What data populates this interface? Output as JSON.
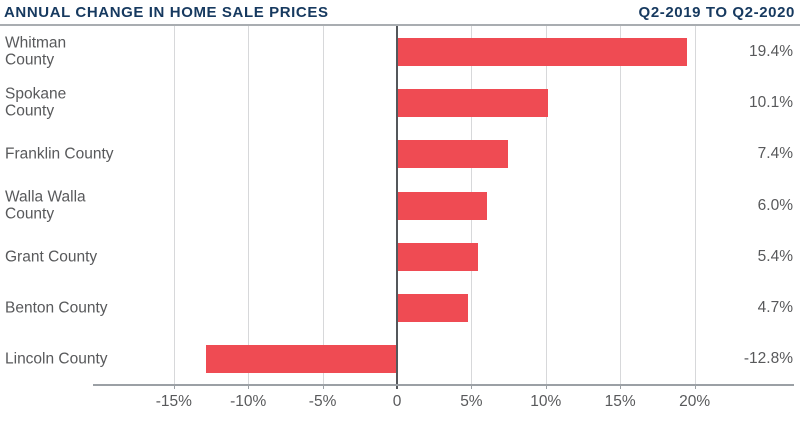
{
  "page": {
    "title_left": "ANNUAL CHANGE IN HOME SALE PRICES",
    "title_right": "Q2-2019 TO Q2-2020"
  },
  "colors": {
    "title_text": "#16395F",
    "bar": "#EF4B53",
    "label_text": "#58595B",
    "gridline": "#D7D8DA",
    "zero_line": "#54575B",
    "axis_line": "#9BA0A5",
    "title_rule": "#A9ADB1"
  },
  "chart_data": {
    "type": "bar",
    "orientation": "horizontal",
    "title": "ANNUAL CHANGE IN HOME SALE PRICES",
    "subtitle": "Q2-2019 TO Q2-2020",
    "categories": [
      "Whitman County",
      "Spokane County",
      "Franklin County",
      "Walla Walla County",
      "Grant County",
      "Benton County",
      "Lincoln County"
    ],
    "category_lines": [
      [
        "Whitman",
        "County"
      ],
      [
        "Spokane",
        "County"
      ],
      [
        "Franklin County"
      ],
      [
        "Walla Walla",
        "County"
      ],
      [
        "Grant County"
      ],
      [
        "Benton County"
      ],
      [
        "Lincoln County"
      ]
    ],
    "values": [
      19.4,
      10.1,
      7.4,
      6.0,
      5.4,
      4.7,
      -12.8
    ],
    "value_labels": [
      "19.4%",
      "10.1%",
      "7.4%",
      "6.0%",
      "5.4%",
      "4.7%",
      "-12.8%"
    ],
    "x_ticks": [
      -15,
      -10,
      -5,
      0,
      5,
      10,
      15,
      20
    ],
    "x_tick_labels": [
      "-15%",
      "-10%",
      "-5%",
      "0",
      "5%",
      "10%",
      "15%",
      "20%"
    ],
    "xlim": [
      -20.3,
      26.7
    ],
    "grid": true,
    "legend": false,
    "bar_color": "#EF4B53"
  }
}
